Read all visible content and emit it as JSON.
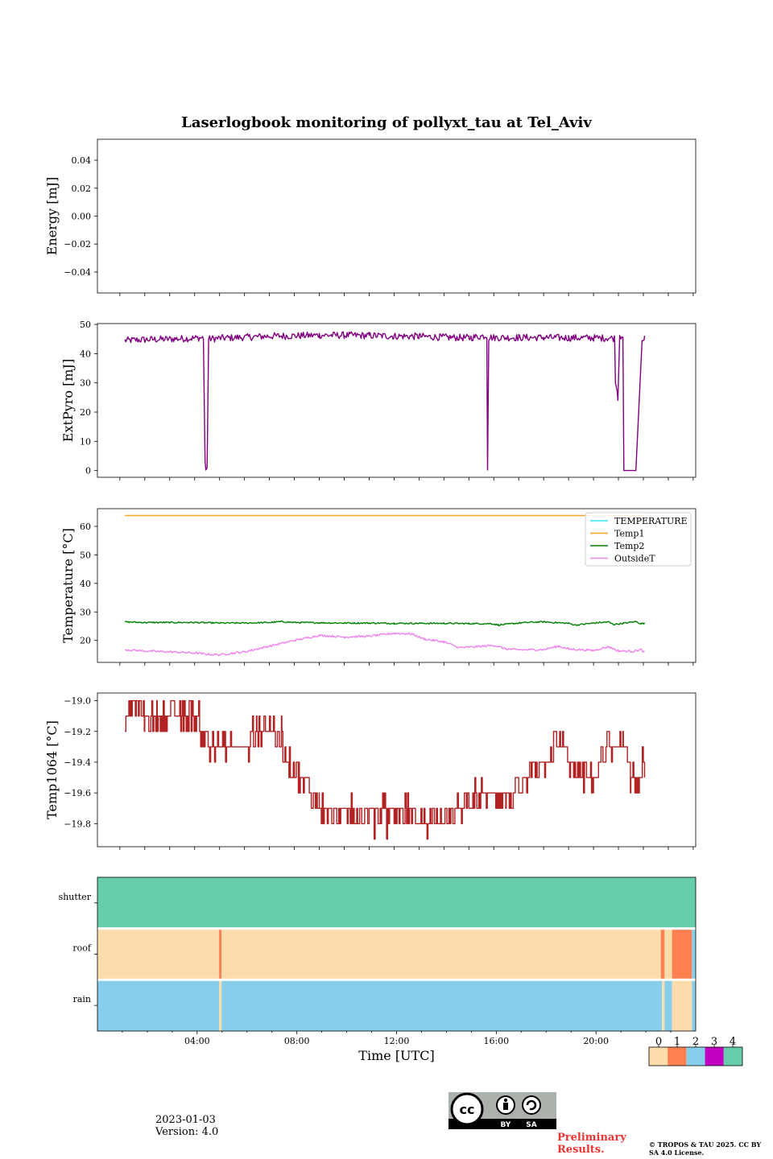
{
  "title": "Laserlogbook monitoring of pollyxt_tau at Tel_Aviv",
  "chart_data": [
    {
      "type": "line",
      "ylabel": "Energy [mJ]",
      "xlim": [
        0.1,
        24.1
      ],
      "ylim": [
        -0.055,
        0.055
      ],
      "yticks": [
        0.04,
        0.02,
        0.0,
        -0.02,
        -0.04
      ],
      "ytick_labels": [
        "0.04",
        "0.02",
        "0.00",
        "−0.02",
        "−0.04"
      ],
      "series": []
    },
    {
      "type": "line",
      "ylabel": "ExtPyro [mJ]",
      "xlim": [
        0.1,
        24.1
      ],
      "ylim": [
        -2.3,
        50.3
      ],
      "yticks": [
        0,
        10,
        20,
        30,
        40,
        50
      ],
      "ytick_labels": [
        "0",
        "10",
        "20",
        "30",
        "40",
        "50"
      ],
      "series": [
        {
          "color": "#800080",
          "x": [
            1.2,
            2,
            3,
            4,
            4.35,
            4.42,
            4.45,
            4.5,
            4.56,
            5,
            6,
            7,
            8,
            9,
            10,
            11,
            12,
            13,
            14,
            15,
            15.72,
            15.75,
            15.8,
            15.85,
            16,
            17,
            18,
            19,
            20,
            20.85,
            20.88,
            20.95,
            20.98,
            21.05,
            21.1,
            21.18,
            21.22,
            21.3,
            21.7,
            21.95,
            22.05
          ],
          "y": [
            44.5,
            44.8,
            45.0,
            45.3,
            45.5,
            3.0,
            0.2,
            1.0,
            45.0,
            45.3,
            45.6,
            46.0,
            46.1,
            46.3,
            46.3,
            46.2,
            46.0,
            45.9,
            45.6,
            45.4,
            46.2,
            0.2,
            45.5,
            45.6,
            45.5,
            45.5,
            45.5,
            45.4,
            45.4,
            45.3,
            30.0,
            27.0,
            24.0,
            46.0,
            46.2,
            46.0,
            0.0,
            0.0,
            0.0,
            45.5,
            45.0
          ],
          "noise": 1.2
        }
      ]
    },
    {
      "type": "line",
      "ylabel": "Temperature [°C]",
      "xlim": [
        0.1,
        24.1
      ],
      "ylim": [
        12.3,
        66.2
      ],
      "yticks": [
        20,
        30,
        40,
        50,
        60
      ],
      "ytick_labels": [
        "20",
        "30",
        "40",
        "50",
        "60"
      ],
      "legend": {
        "position": "top-right",
        "entries": [
          "TEMPERATURE",
          "Temp1",
          "Temp2",
          "OutsideT"
        ]
      },
      "series": [
        {
          "name": "TEMPERATURE",
          "color": "#2ee8e8",
          "x": [],
          "y": [],
          "noise": 0
        },
        {
          "name": "Temp1",
          "color": "#f5a623",
          "x": [
            1.2,
            22.05
          ],
          "y": [
            63.8,
            63.8
          ],
          "noise": 0
        },
        {
          "name": "Temp2",
          "color": "#008000",
          "x": [
            1.2,
            2,
            3,
            4,
            5,
            6,
            7,
            7.5,
            8,
            9,
            10,
            11,
            12,
            13,
            14,
            15,
            15.9,
            16.2,
            17,
            17.5,
            18,
            19,
            19.3,
            20,
            20.6,
            20.8,
            21.2,
            21.7,
            21.9,
            22.05
          ],
          "y": [
            26.5,
            26.3,
            26.3,
            26.3,
            26.1,
            26.1,
            26.3,
            26.6,
            26.3,
            26.2,
            26.1,
            26.1,
            26.0,
            26.0,
            26.0,
            25.9,
            25.9,
            25.4,
            26.1,
            26.4,
            26.5,
            26.0,
            25.4,
            26.1,
            26.5,
            25.6,
            26.0,
            26.6,
            25.9,
            26.0
          ],
          "noise": 0.25
        },
        {
          "name": "OutsideT",
          "color": "#ee82ee",
          "x": [
            1.2,
            2,
            3,
            4,
            4.6,
            5,
            6,
            7,
            8,
            9,
            10,
            11,
            12,
            12.7,
            13.2,
            14,
            14.6,
            15,
            16,
            16.5,
            17,
            18,
            18.6,
            19,
            20,
            20.6,
            21,
            21.6,
            21.9,
            22.05
          ],
          "y": [
            16.8,
            16.3,
            16.0,
            15.6,
            15.1,
            15.0,
            16.0,
            18.0,
            20.0,
            21.8,
            21.2,
            21.5,
            22.5,
            22.3,
            20.5,
            19.5,
            17.5,
            17.6,
            18.3,
            17.0,
            16.7,
            16.8,
            18.0,
            17.0,
            16.5,
            17.8,
            16.3,
            16.2,
            16.8,
            15.8
          ],
          "noise": 0.35
        }
      ]
    },
    {
      "type": "line",
      "ylabel": "Temp1064 [°C]",
      "xlim": [
        0.1,
        24.1
      ],
      "ylim": [
        -19.95,
        -18.95
      ],
      "yticks": [
        -19.0,
        -19.2,
        -19.4,
        -19.6,
        -19.8
      ],
      "ytick_labels": [
        "−19.0",
        "−19.2",
        "−19.4",
        "−19.6",
        "−19.8"
      ],
      "series": [
        {
          "color": "#b22222",
          "x": [
            1.2,
            1.5,
            2.0,
            2.5,
            3.0,
            3.5,
            4.0,
            4.3,
            4.6,
            5.0,
            5.4,
            5.8,
            6.2,
            6.5,
            6.8,
            7.2,
            7.5,
            7.8,
            8.2,
            8.6,
            9.0,
            9.5,
            10.0,
            10.5,
            11.0,
            11.5,
            12.0,
            12.5,
            13.0,
            13.5,
            14.0,
            14.5,
            15.0,
            15.5,
            16.0,
            16.5,
            17.0,
            17.5,
            18.0,
            18.4,
            18.8,
            19.2,
            19.6,
            20.0,
            20.3,
            20.6,
            20.9,
            21.2,
            21.5,
            21.8,
            22.05
          ],
          "y": [
            -19.15,
            -19.05,
            -19.1,
            -19.12,
            -19.1,
            -19.12,
            -19.1,
            -19.2,
            -19.3,
            -19.3,
            -19.3,
            -19.3,
            -19.3,
            -19.2,
            -19.15,
            -19.2,
            -19.3,
            -19.4,
            -19.5,
            -19.6,
            -19.68,
            -19.75,
            -19.75,
            -19.75,
            -19.75,
            -19.72,
            -19.72,
            -19.72,
            -19.8,
            -19.75,
            -19.75,
            -19.72,
            -19.65,
            -19.62,
            -19.6,
            -19.62,
            -19.6,
            -19.5,
            -19.42,
            -19.28,
            -19.3,
            -19.45,
            -19.5,
            -19.5,
            -19.42,
            -19.3,
            -19.35,
            -19.2,
            -19.5,
            -19.55,
            -19.45
          ],
          "noise": 0.08
        }
      ]
    },
    {
      "type": "heatmap",
      "xlabel": "Time [UTC]",
      "xlim": [
        0,
        24
      ],
      "xticks": [
        4,
        8,
        12,
        16,
        20
      ],
      "xtick_labels": [
        "04:00",
        "08:00",
        "12:00",
        "16:00",
        "20:00"
      ],
      "rows": [
        "shutter",
        "roof",
        "rain"
      ],
      "cmap": {
        "values": [
          "0",
          "1",
          "2",
          "3",
          "4"
        ],
        "colors": [
          "#fddcab",
          "#ff8050",
          "#87ceeb",
          "#c000c0",
          "#66cdaa"
        ]
      },
      "segments": {
        "shutter": [
          [
            0,
            24,
            4
          ]
        ],
        "roof": [
          [
            0,
            4.88,
            0
          ],
          [
            4.88,
            4.98,
            1
          ],
          [
            4.98,
            22.6,
            0
          ],
          [
            22.6,
            22.75,
            1
          ],
          [
            22.75,
            23.05,
            0
          ],
          [
            23.05,
            23.85,
            1
          ],
          [
            23.85,
            24,
            2
          ]
        ],
        "rain": [
          [
            0,
            4.88,
            2
          ],
          [
            4.88,
            4.98,
            0
          ],
          [
            4.98,
            22.65,
            2
          ],
          [
            22.65,
            22.75,
            0
          ],
          [
            22.75,
            23.05,
            2
          ],
          [
            23.05,
            23.85,
            0
          ],
          [
            23.85,
            24,
            2
          ]
        ]
      }
    }
  ],
  "footer": {
    "date": "2023-01-03",
    "version": "Version: 4.0",
    "preliminary": "Preliminary Results.",
    "copyright": "© TROPOS & TAU 2025. CC BY SA 4.0 License.",
    "cc_badge": {
      "by": "BY",
      "sa": "SA"
    }
  }
}
